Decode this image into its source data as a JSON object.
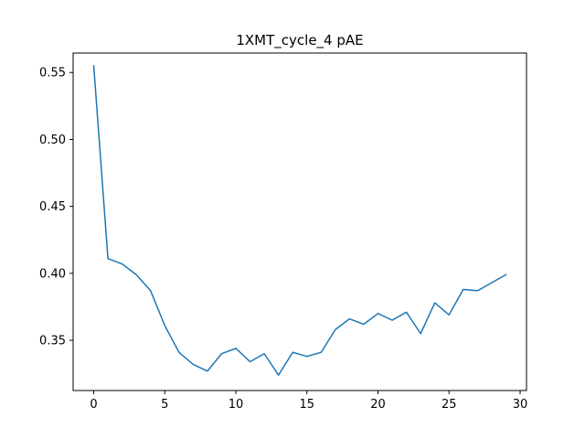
{
  "chart_data": {
    "type": "line",
    "title": "1XMT_cycle_4 pAE",
    "xlabel": "",
    "ylabel": "",
    "xlim": [
      -1.45,
      30.45
    ],
    "ylim": [
      0.3125,
      0.5645
    ],
    "xticks": [
      0,
      5,
      10,
      15,
      20,
      25,
      30
    ],
    "yticks": [
      0.35,
      0.4,
      0.45,
      0.5,
      0.55
    ],
    "xtick_labels": [
      "0",
      "5",
      "10",
      "15",
      "20",
      "25",
      "30"
    ],
    "ytick_labels": [
      "0.35",
      "0.40",
      "0.45",
      "0.50",
      "0.55"
    ],
    "grid": false,
    "legend": "none",
    "series": [
      {
        "color": "#1f77b4",
        "x": [
          0,
          1,
          2,
          3,
          4,
          5,
          6,
          7,
          8,
          9,
          10,
          11,
          12,
          13,
          14,
          15,
          16,
          17,
          18,
          19,
          20,
          21,
          22,
          23,
          24,
          25,
          26,
          27,
          28,
          29
        ],
        "values": [
          0.555,
          0.411,
          0.407,
          0.399,
          0.387,
          0.361,
          0.341,
          0.332,
          0.327,
          0.34,
          0.344,
          0.334,
          0.34,
          0.324,
          0.341,
          0.338,
          0.341,
          0.358,
          0.366,
          0.362,
          0.37,
          0.365,
          0.371,
          0.355,
          0.378,
          0.369,
          0.388,
          0.387,
          0.393,
          0.399
        ]
      }
    ]
  }
}
